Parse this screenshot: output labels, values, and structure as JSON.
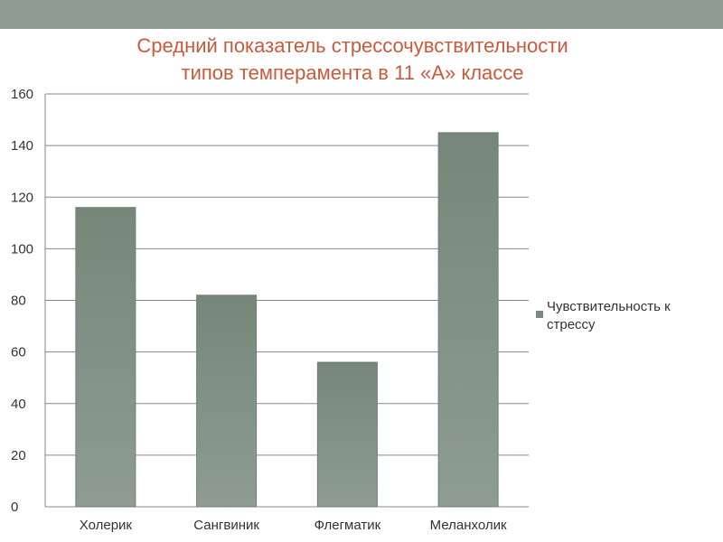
{
  "slide": {
    "band_color": "#8f9b91"
  },
  "chart_data": {
    "type": "bar",
    "title_line1": "Средний показатель стрессочувствительности",
    "title_line2": "типов темперамента в 11 «А» классе",
    "categories": [
      "Холерик",
      "Сангвиник",
      "Флегматик",
      "Меланхолик"
    ],
    "series": [
      {
        "name": "Чувствительность к стрессу",
        "values": [
          116,
          82,
          56,
          145
        ],
        "color": "#7a8a7d"
      }
    ],
    "ylim": [
      0,
      160
    ],
    "yticks": [
      "0",
      "20",
      "40",
      "60",
      "80",
      "100",
      "120",
      "140",
      "160"
    ],
    "grid": true,
    "legend_position": "right",
    "title_color": "#c95a3c"
  }
}
